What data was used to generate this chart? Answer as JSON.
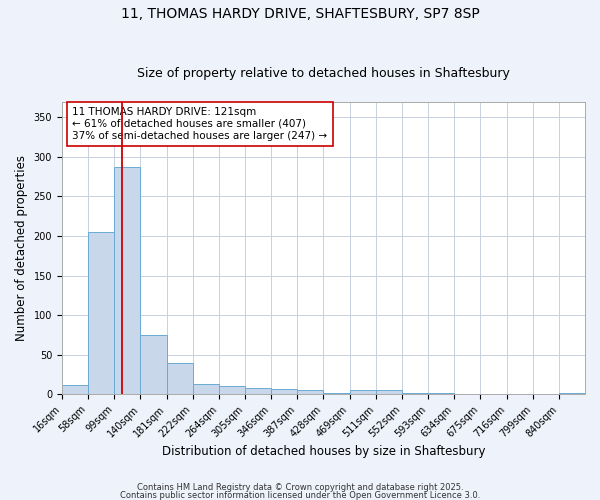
{
  "title_line1": "11, THOMAS HARDY DRIVE, SHAFTESBURY, SP7 8SP",
  "title_line2": "Size of property relative to detached houses in Shaftesbury",
  "xlabel": "Distribution of detached houses by size in Shaftesbury",
  "ylabel": "Number of detached properties",
  "bin_labels": [
    "16sqm",
    "58sqm",
    "99sqm",
    "140sqm",
    "181sqm",
    "222sqm",
    "264sqm",
    "305sqm",
    "346sqm",
    "387sqm",
    "428sqm",
    "469sqm",
    "511sqm",
    "552sqm",
    "593sqm",
    "634sqm",
    "675sqm",
    "716sqm",
    "799sqm",
    "840sqm"
  ],
  "bar_heights": [
    12,
    205,
    287,
    75,
    40,
    13,
    10,
    8,
    6,
    5,
    2,
    5,
    5,
    2,
    1,
    0,
    0,
    0,
    0,
    2
  ],
  "bar_color": "#c8d8ea",
  "bar_edge_color": "#6aaad4",
  "red_line_bin": 2.28,
  "annotation_text": "11 THOMAS HARDY DRIVE: 121sqm\n← 61% of detached houses are smaller (407)\n37% of semi-detached houses are larger (247) →",
  "annotation_box_color": "#ffffff",
  "annotation_box_edge": "#cc0000",
  "ylim": [
    0,
    370
  ],
  "yticks": [
    0,
    50,
    100,
    150,
    200,
    250,
    300,
    350
  ],
  "background_color": "#eef2fb",
  "plot_background": "#ffffff",
  "grid_color": "#c8d0e0",
  "footer_line1": "Contains HM Land Registry data © Crown copyright and database right 2025.",
  "footer_line2": "Contains public sector information licensed under the Open Government Licence 3.0.",
  "title_fontsize": 10,
  "subtitle_fontsize": 9,
  "tick_fontsize": 7,
  "ylabel_fontsize": 8.5,
  "xlabel_fontsize": 8.5,
  "annotation_fontsize": 7.5,
  "footer_fontsize": 6
}
